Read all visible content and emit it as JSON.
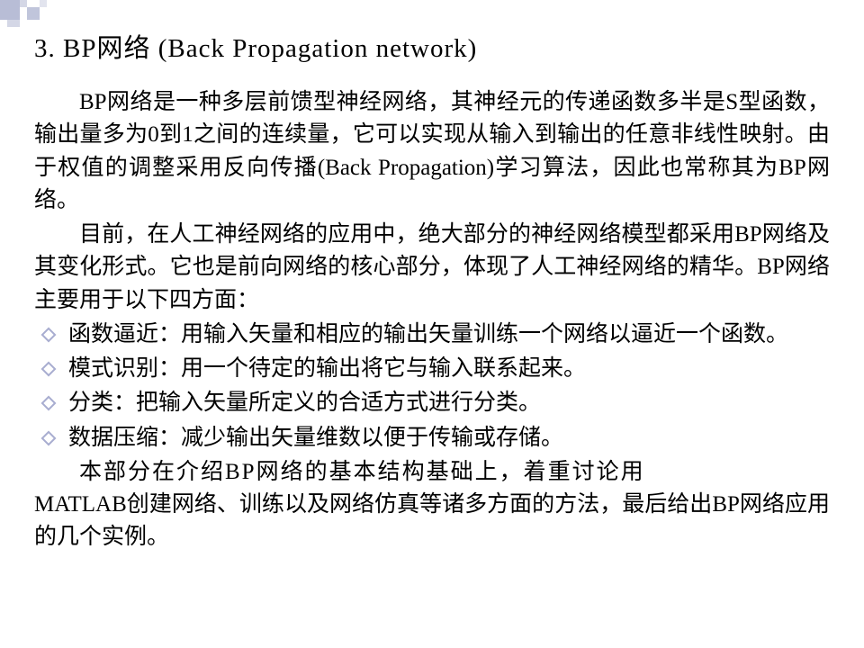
{
  "title": "3. BP网络 (Back Propagation network)",
  "para1": "BP网络是一种多层前馈型神经网络，其神经元的传递函数多半是S型函数，输出量多为0到1之间的连续量，它可以实现从输入到输出的任意非线性映射。由于权值的调整采用反向传播(Back Propagation)学习算法，因此也常称其为BP网络。",
  "para2": "目前，在人工神经网络的应用中，绝大部分的神经网络模型都采用BP网络及其变化形式。它也是前向网络的核心部分，体现了人工神经网络的精华。BP网络主要用于以下四方面：",
  "bullets": [
    "函数逼近：用输入矢量和相应的输出矢量训练一个网络以逼近一个函数。",
    "模式识别：用一个待定的输出将它与输入联系起来。",
    "分类：把输入矢量所定义的合适方式进行分类。",
    "数据压缩：减少输出矢量维数以便于传输或存储。"
  ],
  "para3a": "本部分在介绍BP网络的基本结构基础上，着重讨论用",
  "para3b": "MATLAB创建网络、训练以及网络仿真等诸多方面的方法，最后给出BP网络应用的几个实例。",
  "colors": {
    "bg": "#ffffff",
    "text": "#000000",
    "deco1": "#b8bdd6",
    "deco2": "#c0c5db",
    "deco3": "#d4d7e6",
    "bullet_border": "#a8add0"
  },
  "fonts": {
    "title_size": 29,
    "body_size": 25,
    "family": "SimSun"
  }
}
